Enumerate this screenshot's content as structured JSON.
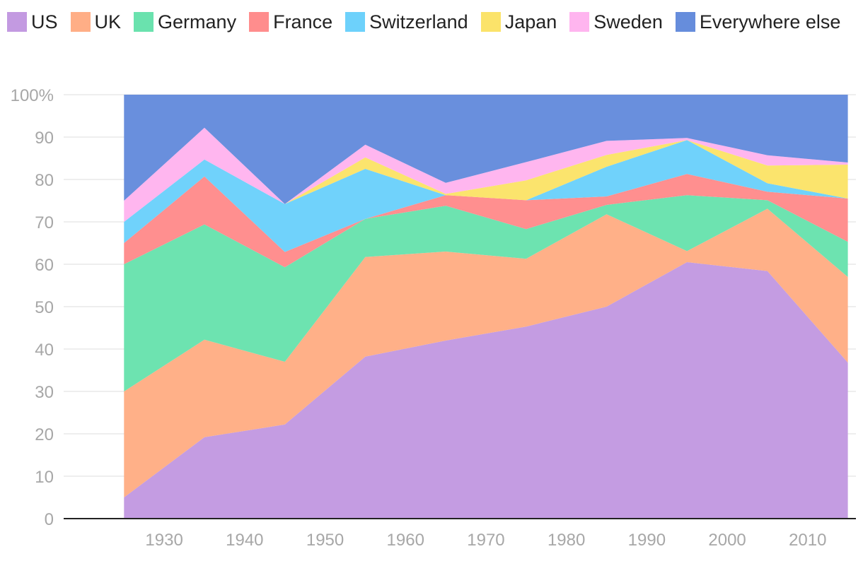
{
  "chart_data": {
    "type": "area",
    "stacked": true,
    "title": "",
    "xlabel": "",
    "ylabel": "",
    "x": [
      1925,
      1935,
      1945,
      1955,
      1965,
      1975,
      1985,
      1995,
      2005,
      2015
    ],
    "xlim": [
      1917.5,
      2016
    ],
    "ylim": [
      0,
      100
    ],
    "x_ticks": [
      "1930",
      "1940",
      "1950",
      "1960",
      "1970",
      "1980",
      "1990",
      "2000",
      "2010"
    ],
    "x_tick_values": [
      1930,
      1940,
      1950,
      1960,
      1970,
      1980,
      1990,
      2000,
      2010
    ],
    "y_ticks": [
      "0",
      "10",
      "20",
      "30",
      "40",
      "50",
      "60",
      "70",
      "80",
      "90",
      "100%"
    ],
    "y_tick_values": [
      0,
      10,
      20,
      30,
      40,
      50,
      60,
      70,
      80,
      90,
      100
    ],
    "grid": true,
    "legend_position": "top",
    "series": [
      {
        "name": "US",
        "color": "#c39ae1",
        "values": [
          5,
          19.2,
          22.2,
          38.2,
          42,
          45.3,
          50,
          60.5,
          58.4,
          36.8
        ]
      },
      {
        "name": "UK",
        "color": "#ffae86",
        "values": [
          25,
          23,
          14.8,
          23.5,
          21,
          16,
          21.8,
          2.6,
          14.7,
          20.2
        ]
      },
      {
        "name": "Germany",
        "color": "#6ae2ae",
        "values": [
          30,
          27.2,
          22.3,
          9,
          10.8,
          7,
          2.2,
          13.2,
          2,
          8.3
        ]
      },
      {
        "name": "France",
        "color": "#ff8d8d",
        "values": [
          5,
          11.3,
          3.6,
          0,
          2.5,
          6.8,
          2,
          5,
          2,
          10.2
        ]
      },
      {
        "name": "Switzerland",
        "color": "#6dd1fb",
        "values": [
          5,
          4,
          11.3,
          11.8,
          0,
          0,
          7,
          8,
          2,
          0
        ]
      },
      {
        "name": "Japan",
        "color": "#fbe36a",
        "values": [
          0,
          0,
          0,
          2.7,
          0.3,
          4.7,
          2.8,
          0,
          4.2,
          8
        ]
      },
      {
        "name": "Sweden",
        "color": "#ffb5ef",
        "values": [
          5,
          7.5,
          0,
          3,
          2.6,
          4.3,
          3.3,
          0.5,
          2.4,
          0.5
        ]
      },
      {
        "name": "Everywhere else",
        "color": "#668ddc",
        "values": [
          25,
          7.8,
          25.8,
          11.8,
          20.8,
          15.9,
          10.9,
          10.2,
          14.3,
          16
        ]
      }
    ]
  }
}
